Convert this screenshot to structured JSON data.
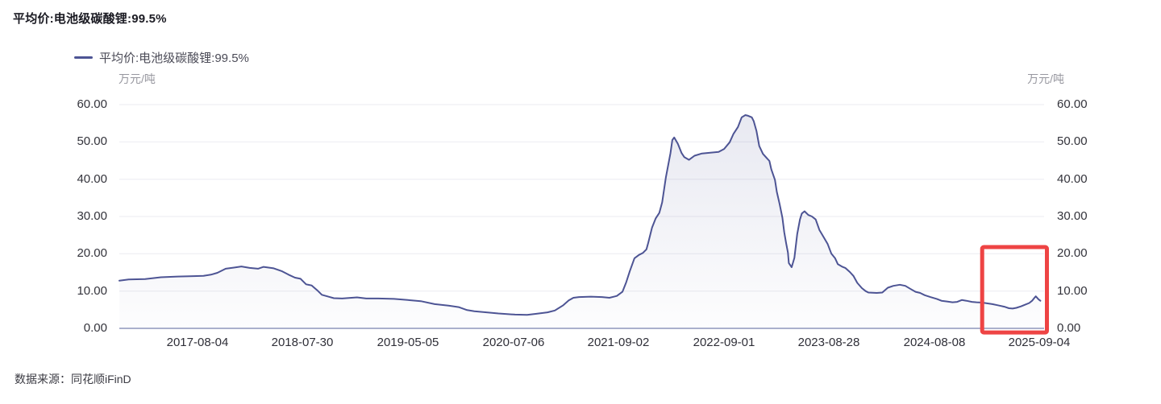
{
  "header": {
    "title": "平均价:电池级碳酸锂:99.5%"
  },
  "legend": {
    "series_label": "平均价:电池级碳酸锂:99.5%",
    "marker_color": "#4d5494"
  },
  "axes": {
    "left_unit": "万元/吨",
    "right_unit": "万元/吨"
  },
  "footer": {
    "source": "数据来源：同花顺iFinD"
  },
  "colors": {
    "line": "#4d5494",
    "area_top": "rgba(77,84,148,0.13)",
    "area_bottom": "rgba(77,84,148,0.01)",
    "gridline": "#ebebf1",
    "baseline": "#8f96bb",
    "highlight": "#ee4444"
  },
  "chart_data": {
    "type": "area",
    "title": "平均价:电池级碳酸锂:99.5%",
    "ylabel": "万元/吨",
    "ylim": [
      0,
      60
    ],
    "yticks": [
      0,
      10,
      20,
      30,
      40,
      50,
      60
    ],
    "grid": true,
    "legend_position": "top-left",
    "xticks": [
      "2017-08-04",
      "2018-07-30",
      "2019-05-05",
      "2020-07-06",
      "2021-09-02",
      "2022-09-01",
      "2023-08-28",
      "2024-08-08",
      "2025-09-04"
    ],
    "xtick_t": [
      0.0846,
      0.1983,
      0.3121,
      0.4259,
      0.5397,
      0.6535,
      0.7672,
      0.881,
      0.9948
    ],
    "annotation_box": {
      "t0": 0.933,
      "t1": 1.003,
      "v0": -1.1,
      "v1": 21.8,
      "color": "#ee4444"
    },
    "series": [
      {
        "name": "平均价:电池级碳酸锂:99.5%",
        "points": [
          [
            0.0,
            12.8
          ],
          [
            0.01,
            13.1
          ],
          [
            0.028,
            13.2
          ],
          [
            0.045,
            13.7
          ],
          [
            0.063,
            13.9
          ],
          [
            0.08,
            14.0
          ],
          [
            0.091,
            14.1
          ],
          [
            0.099,
            14.4
          ],
          [
            0.106,
            14.9
          ],
          [
            0.115,
            16.0
          ],
          [
            0.124,
            16.3
          ],
          [
            0.132,
            16.6
          ],
          [
            0.141,
            16.2
          ],
          [
            0.15,
            16.0
          ],
          [
            0.156,
            16.5
          ],
          [
            0.167,
            16.1
          ],
          [
            0.176,
            15.3
          ],
          [
            0.183,
            14.4
          ],
          [
            0.19,
            13.6
          ],
          [
            0.196,
            13.3
          ],
          [
            0.202,
            11.8
          ],
          [
            0.208,
            11.5
          ],
          [
            0.214,
            10.2
          ],
          [
            0.219,
            9.0
          ],
          [
            0.226,
            8.5
          ],
          [
            0.232,
            8.1
          ],
          [
            0.241,
            8.0
          ],
          [
            0.257,
            8.3
          ],
          [
            0.267,
            8.0
          ],
          [
            0.28,
            8.0
          ],
          [
            0.297,
            7.9
          ],
          [
            0.312,
            7.6
          ],
          [
            0.326,
            7.3
          ],
          [
            0.341,
            6.5
          ],
          [
            0.356,
            6.1
          ],
          [
            0.367,
            5.7
          ],
          [
            0.376,
            4.9
          ],
          [
            0.384,
            4.6
          ],
          [
            0.397,
            4.3
          ],
          [
            0.41,
            4.0
          ],
          [
            0.428,
            3.7
          ],
          [
            0.441,
            3.6
          ],
          [
            0.451,
            3.9
          ],
          [
            0.463,
            4.3
          ],
          [
            0.471,
            4.8
          ],
          [
            0.48,
            6.2
          ],
          [
            0.486,
            7.5
          ],
          [
            0.491,
            8.2
          ],
          [
            0.497,
            8.4
          ],
          [
            0.51,
            8.5
          ],
          [
            0.522,
            8.4
          ],
          [
            0.53,
            8.2
          ],
          [
            0.538,
            8.7
          ],
          [
            0.544,
            9.8
          ],
          [
            0.548,
            12.3
          ],
          [
            0.552,
            15.3
          ],
          [
            0.557,
            18.8
          ],
          [
            0.562,
            19.7
          ],
          [
            0.566,
            20.2
          ],
          [
            0.57,
            21.2
          ],
          [
            0.572,
            23.0
          ],
          [
            0.576,
            27.0
          ],
          [
            0.58,
            29.5
          ],
          [
            0.584,
            31.0
          ],
          [
            0.587,
            33.8
          ],
          [
            0.591,
            40.5
          ],
          [
            0.596,
            47.0
          ],
          [
            0.598,
            50.5
          ],
          [
            0.6,
            51.2
          ],
          [
            0.604,
            49.5
          ],
          [
            0.608,
            47.0
          ],
          [
            0.611,
            45.9
          ],
          [
            0.616,
            45.2
          ],
          [
            0.622,
            46.3
          ],
          [
            0.63,
            46.9
          ],
          [
            0.639,
            47.1
          ],
          [
            0.648,
            47.3
          ],
          [
            0.654,
            48.1
          ],
          [
            0.66,
            49.9
          ],
          [
            0.664,
            52.1
          ],
          [
            0.669,
            54.0
          ],
          [
            0.673,
            56.6
          ],
          [
            0.677,
            57.2
          ],
          [
            0.68,
            57.0
          ],
          [
            0.684,
            56.6
          ],
          [
            0.686,
            55.6
          ],
          [
            0.689,
            52.9
          ],
          [
            0.692,
            48.9
          ],
          [
            0.696,
            46.8
          ],
          [
            0.7,
            45.7
          ],
          [
            0.703,
            44.9
          ],
          [
            0.705,
            42.7
          ],
          [
            0.709,
            39.8
          ],
          [
            0.711,
            36.6
          ],
          [
            0.714,
            33.3
          ],
          [
            0.717,
            29.7
          ],
          [
            0.719,
            25.8
          ],
          [
            0.721,
            22.9
          ],
          [
            0.723,
            20.3
          ],
          [
            0.724,
            17.5
          ],
          [
            0.727,
            16.4
          ],
          [
            0.73,
            18.9
          ],
          [
            0.733,
            25.3
          ],
          [
            0.736,
            29.2
          ],
          [
            0.738,
            30.8
          ],
          [
            0.741,
            31.4
          ],
          [
            0.745,
            30.4
          ],
          [
            0.749,
            30.0
          ],
          [
            0.753,
            29.2
          ],
          [
            0.757,
            26.4
          ],
          [
            0.762,
            24.3
          ],
          [
            0.766,
            22.6
          ],
          [
            0.77,
            20.0
          ],
          [
            0.774,
            18.8
          ],
          [
            0.777,
            17.2
          ],
          [
            0.782,
            16.5
          ],
          [
            0.785,
            16.2
          ],
          [
            0.79,
            15.1
          ],
          [
            0.794,
            14.0
          ],
          [
            0.798,
            12.2
          ],
          [
            0.803,
            10.8
          ],
          [
            0.807,
            10.0
          ],
          [
            0.81,
            9.6
          ],
          [
            0.819,
            9.5
          ],
          [
            0.825,
            9.6
          ],
          [
            0.831,
            10.9
          ],
          [
            0.837,
            11.4
          ],
          [
            0.844,
            11.7
          ],
          [
            0.85,
            11.4
          ],
          [
            0.856,
            10.5
          ],
          [
            0.861,
            9.8
          ],
          [
            0.866,
            9.5
          ],
          [
            0.871,
            8.9
          ],
          [
            0.877,
            8.4
          ],
          [
            0.884,
            7.9
          ],
          [
            0.889,
            7.4
          ],
          [
            0.895,
            7.2
          ],
          [
            0.901,
            7.0
          ],
          [
            0.906,
            7.1
          ],
          [
            0.911,
            7.6
          ],
          [
            0.916,
            7.4
          ],
          [
            0.922,
            7.1
          ],
          [
            0.927,
            7.0
          ],
          [
            0.933,
            6.9
          ],
          [
            0.939,
            6.7
          ],
          [
            0.944,
            6.5
          ],
          [
            0.95,
            6.2
          ],
          [
            0.957,
            5.8
          ],
          [
            0.962,
            5.4
          ],
          [
            0.966,
            5.3
          ],
          [
            0.97,
            5.5
          ],
          [
            0.975,
            5.9
          ],
          [
            0.979,
            6.3
          ],
          [
            0.984,
            6.8
          ],
          [
            0.987,
            7.4
          ],
          [
            0.99,
            8.3
          ],
          [
            0.991,
            8.6
          ],
          [
            0.994,
            7.8
          ],
          [
            0.996,
            7.4
          ]
        ]
      }
    ]
  }
}
